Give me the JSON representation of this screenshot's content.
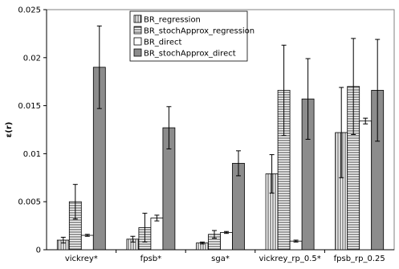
{
  "chart_data": {
    "type": "bar",
    "title": "",
    "xlabel": "",
    "ylabel": "ε(r)",
    "ylim": [
      0,
      0.025
    ],
    "yticks": [
      0,
      0.005,
      0.01,
      0.015,
      0.02,
      0.025
    ],
    "ytick_labels": [
      "0",
      "0.005",
      "0.01",
      "0.015",
      "0.02",
      "0.025"
    ],
    "grid": false,
    "legend_position": "top-center",
    "categories": [
      "vickrey*",
      "fpsb*",
      "sga*",
      "vickrey_rp_0.5*",
      "fpsb_rp_0.25"
    ],
    "series": [
      {
        "name": "BR_regression",
        "pattern": "vertical-lines",
        "values": [
          0.001,
          0.0011,
          0.0007,
          0.0079,
          0.0122
        ],
        "errors": [
          0.0003,
          0.0003,
          0.0001,
          0.002,
          0.0047
        ]
      },
      {
        "name": "BR_stochApprox_regression",
        "pattern": "horizontal-lines",
        "values": [
          0.005,
          0.0023,
          0.0016,
          0.0166,
          0.017
        ],
        "errors": [
          0.0018,
          0.0015,
          0.0004,
          0.0047,
          0.005
        ]
      },
      {
        "name": "BR_direct",
        "pattern": "white",
        "values": [
          0.0015,
          0.0033,
          0.0018,
          0.0009,
          0.0134
        ],
        "errors": [
          0.0001,
          0.0003,
          0.0001,
          0.0001,
          0.0003
        ]
      },
      {
        "name": "BR_stochApprox_direct",
        "pattern": "gray",
        "color": "#8c8c8c",
        "values": [
          0.019,
          0.0127,
          0.009,
          0.0157,
          0.0166
        ],
        "errors": [
          0.0043,
          0.0022,
          0.0013,
          0.0042,
          0.0053
        ]
      }
    ]
  }
}
